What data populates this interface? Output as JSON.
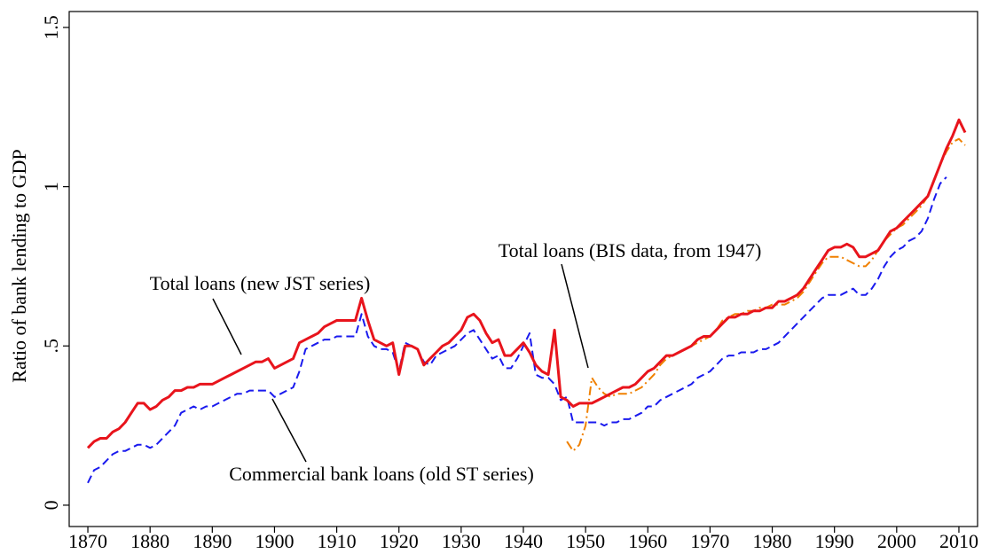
{
  "chart_data": {
    "type": "line",
    "y_label": "Ratio of bank lending to GDP",
    "x": [
      1870,
      1871,
      1872,
      1873,
      1874,
      1875,
      1876,
      1877,
      1878,
      1879,
      1880,
      1881,
      1882,
      1883,
      1884,
      1885,
      1886,
      1887,
      1888,
      1889,
      1890,
      1891,
      1892,
      1893,
      1894,
      1895,
      1896,
      1897,
      1898,
      1899,
      1900,
      1901,
      1902,
      1903,
      1904,
      1905,
      1906,
      1907,
      1908,
      1909,
      1910,
      1911,
      1912,
      1913,
      1914,
      1915,
      1916,
      1917,
      1918,
      1919,
      1920,
      1921,
      1922,
      1923,
      1924,
      1925,
      1926,
      1927,
      1928,
      1929,
      1930,
      1931,
      1932,
      1933,
      1934,
      1935,
      1936,
      1937,
      1938,
      1939,
      1940,
      1941,
      1942,
      1943,
      1944,
      1945,
      1946,
      1947,
      1948,
      1949,
      1950,
      1951,
      1952,
      1953,
      1954,
      1955,
      1956,
      1957,
      1958,
      1959,
      1960,
      1961,
      1962,
      1963,
      1964,
      1965,
      1966,
      1967,
      1968,
      1969,
      1970,
      1971,
      1972,
      1973,
      1974,
      1975,
      1976,
      1977,
      1978,
      1979,
      1980,
      1981,
      1982,
      1983,
      1984,
      1985,
      1986,
      1987,
      1988,
      1989,
      1990,
      1991,
      1992,
      1993,
      1994,
      1995,
      1996,
      1997,
      1998,
      1999,
      2000,
      2001,
      2002,
      2003,
      2004,
      2005,
      2006,
      2007,
      2008,
      2009,
      2010,
      2011
    ],
    "series": [
      {
        "name": "Total loans (new JST series)",
        "color": "#e8141c",
        "style": "solid",
        "values": [
          0.18,
          0.2,
          0.21,
          0.21,
          0.23,
          0.24,
          0.26,
          0.29,
          0.32,
          0.32,
          0.3,
          0.31,
          0.33,
          0.34,
          0.36,
          0.36,
          0.37,
          0.37,
          0.38,
          0.38,
          0.38,
          0.39,
          0.4,
          0.41,
          0.42,
          0.43,
          0.44,
          0.45,
          0.45,
          0.46,
          0.43,
          0.44,
          0.45,
          0.46,
          0.51,
          0.52,
          0.53,
          0.54,
          0.56,
          0.57,
          0.58,
          0.58,
          0.58,
          0.58,
          0.65,
          0.58,
          0.52,
          0.51,
          0.5,
          0.51,
          0.41,
          0.5,
          0.5,
          0.49,
          0.44,
          0.46,
          0.48,
          0.5,
          0.51,
          0.53,
          0.55,
          0.59,
          0.6,
          0.58,
          0.54,
          0.51,
          0.52,
          0.47,
          0.47,
          0.49,
          0.51,
          0.48,
          0.44,
          0.42,
          0.41,
          0.55,
          0.34,
          0.33,
          0.31,
          0.32,
          0.32,
          0.32,
          0.33,
          0.34,
          0.35,
          0.36,
          0.37,
          0.37,
          0.38,
          0.4,
          0.42,
          0.43,
          0.45,
          0.47,
          0.47,
          0.48,
          0.49,
          0.5,
          0.52,
          0.53,
          0.53,
          0.55,
          0.57,
          0.59,
          0.59,
          0.6,
          0.6,
          0.61,
          0.61,
          0.62,
          0.62,
          0.64,
          0.64,
          0.65,
          0.66,
          0.68,
          0.71,
          0.74,
          0.77,
          0.8,
          0.81,
          0.81,
          0.82,
          0.81,
          0.78,
          0.78,
          0.79,
          0.8,
          0.83,
          0.86,
          0.87,
          0.89,
          0.91,
          0.93,
          0.95,
          0.97,
          1.02,
          1.07,
          1.12,
          1.16,
          1.21,
          1.17
        ]
      },
      {
        "name": "Commercial bank loans (old ST series)",
        "color": "#1a1aee",
        "style": "dash",
        "values": [
          0.07,
          0.11,
          0.12,
          0.14,
          0.16,
          0.17,
          0.17,
          0.18,
          0.19,
          0.19,
          0.18,
          0.19,
          0.21,
          0.23,
          0.25,
          0.29,
          0.3,
          0.31,
          0.3,
          0.31,
          0.31,
          0.32,
          0.33,
          0.34,
          0.35,
          0.35,
          0.36,
          0.36,
          0.36,
          0.36,
          0.34,
          0.35,
          0.36,
          0.37,
          0.42,
          0.49,
          0.5,
          0.51,
          0.52,
          0.52,
          0.53,
          0.53,
          0.53,
          0.53,
          0.6,
          0.53,
          0.5,
          0.49,
          0.49,
          0.48,
          0.42,
          0.51,
          0.5,
          0.49,
          0.45,
          0.44,
          0.47,
          0.48,
          0.49,
          0.5,
          0.52,
          0.54,
          0.55,
          0.52,
          0.49,
          0.46,
          0.47,
          0.43,
          0.43,
          0.46,
          0.5,
          0.54,
          0.41,
          0.4,
          0.4,
          0.38,
          0.33,
          0.34,
          0.26,
          0.26,
          0.26,
          0.26,
          0.26,
          0.25,
          0.26,
          0.26,
          0.27,
          0.27,
          0.28,
          0.29,
          0.31,
          0.31,
          0.33,
          0.34,
          0.35,
          0.36,
          0.37,
          0.38,
          0.4,
          0.41,
          0.42,
          0.44,
          0.46,
          0.47,
          0.47,
          0.48,
          0.48,
          0.48,
          0.49,
          0.49,
          0.5,
          0.51,
          0.53,
          0.55,
          0.57,
          0.59,
          0.61,
          0.63,
          0.65,
          0.66,
          0.66,
          0.66,
          0.67,
          0.68,
          0.66,
          0.66,
          0.68,
          0.71,
          0.75,
          0.78,
          0.8,
          0.81,
          0.83,
          0.84,
          0.86,
          0.9,
          0.96,
          1.01,
          1.03,
          null,
          null,
          null
        ]
      },
      {
        "name": "Total loans (BIS data, from 1947)",
        "color": "#f08000",
        "style": "dashdot",
        "values": [
          null,
          null,
          null,
          null,
          null,
          null,
          null,
          null,
          null,
          null,
          null,
          null,
          null,
          null,
          null,
          null,
          null,
          null,
          null,
          null,
          null,
          null,
          null,
          null,
          null,
          null,
          null,
          null,
          null,
          null,
          null,
          null,
          null,
          null,
          null,
          null,
          null,
          null,
          null,
          null,
          null,
          null,
          null,
          null,
          null,
          null,
          null,
          null,
          null,
          null,
          null,
          null,
          null,
          null,
          null,
          null,
          null,
          null,
          null,
          null,
          null,
          null,
          null,
          null,
          null,
          null,
          null,
          null,
          null,
          null,
          null,
          null,
          null,
          null,
          null,
          null,
          null,
          0.2,
          0.17,
          0.19,
          0.25,
          0.4,
          0.37,
          0.35,
          0.34,
          0.35,
          0.35,
          0.35,
          0.36,
          0.37,
          0.39,
          0.41,
          0.44,
          0.46,
          0.47,
          0.48,
          0.49,
          0.5,
          0.51,
          0.52,
          0.53,
          0.55,
          0.58,
          0.59,
          0.6,
          0.6,
          0.61,
          0.61,
          0.62,
          0.62,
          0.63,
          0.63,
          0.63,
          0.64,
          0.65,
          0.67,
          0.7,
          0.73,
          0.76,
          0.78,
          0.78,
          0.78,
          0.77,
          0.76,
          0.75,
          0.75,
          0.77,
          0.8,
          0.83,
          0.85,
          0.87,
          0.88,
          0.9,
          0.92,
          0.94,
          0.97,
          1.02,
          1.07,
          1.11,
          1.14,
          1.15,
          1.13
        ]
      }
    ],
    "xlim": [
      1867,
      2013
    ],
    "xticks": [
      1870,
      1880,
      1890,
      1900,
      1910,
      1920,
      1930,
      1940,
      1950,
      1960,
      1970,
      1980,
      1990,
      2000,
      2010
    ],
    "ylim": [
      -0.067,
      1.55
    ],
    "yticks": [
      0,
      {
        "value": 0.5,
        "label": ".5"
      },
      1,
      1.5
    ]
  }
}
